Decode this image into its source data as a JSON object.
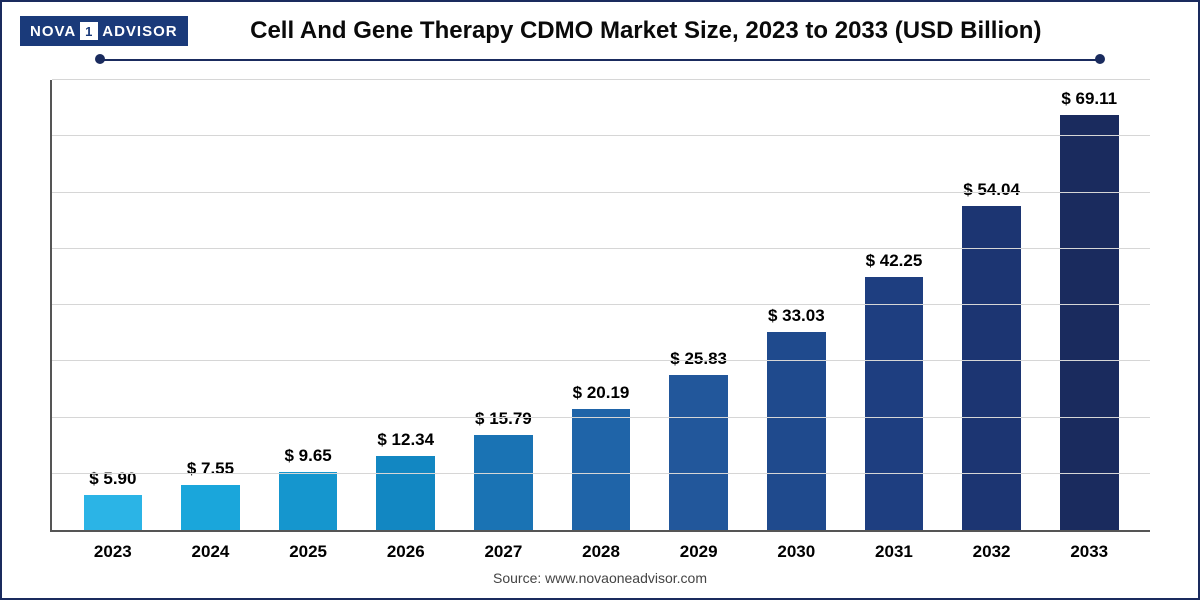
{
  "logo": {
    "part1": "NOVA",
    "one": "1",
    "part2": "ADVISOR"
  },
  "title": "Cell And Gene Therapy CDMO Market Size, 2023 to 2033 (USD Billion)",
  "source": "Source: www.novaoneadvisor.com",
  "chart": {
    "type": "bar",
    "categories": [
      "2023",
      "2024",
      "2025",
      "2026",
      "2027",
      "2028",
      "2029",
      "2030",
      "2031",
      "2032",
      "2033"
    ],
    "values": [
      5.9,
      7.55,
      9.65,
      12.34,
      15.79,
      20.19,
      25.83,
      33.03,
      42.25,
      54.04,
      69.11
    ],
    "value_labels": [
      "$ 5.90",
      "$ 7.55",
      "$ 9.65",
      "$ 12.34",
      "$ 15.79",
      "$ 20.19",
      "$ 25.83",
      "$ 33.03",
      "$ 42.25",
      "$ 54.04",
      "$ 69.11"
    ],
    "bar_colors": [
      "#2bb4e6",
      "#1aa6db",
      "#1596ce",
      "#1287c2",
      "#1a73b4",
      "#1f64a8",
      "#22579b",
      "#1f4a8d",
      "#1e3e80",
      "#1c3572",
      "#1a2b5e"
    ],
    "ylim": [
      0,
      75
    ],
    "grid_count": 8,
    "grid_color": "#d6d6d6",
    "axis_color": "#555555",
    "background_color": "#ffffff",
    "bar_width_pct": 60,
    "label_fontsize": 17,
    "title_fontsize": 24,
    "border_color": "#1a2b5e"
  }
}
